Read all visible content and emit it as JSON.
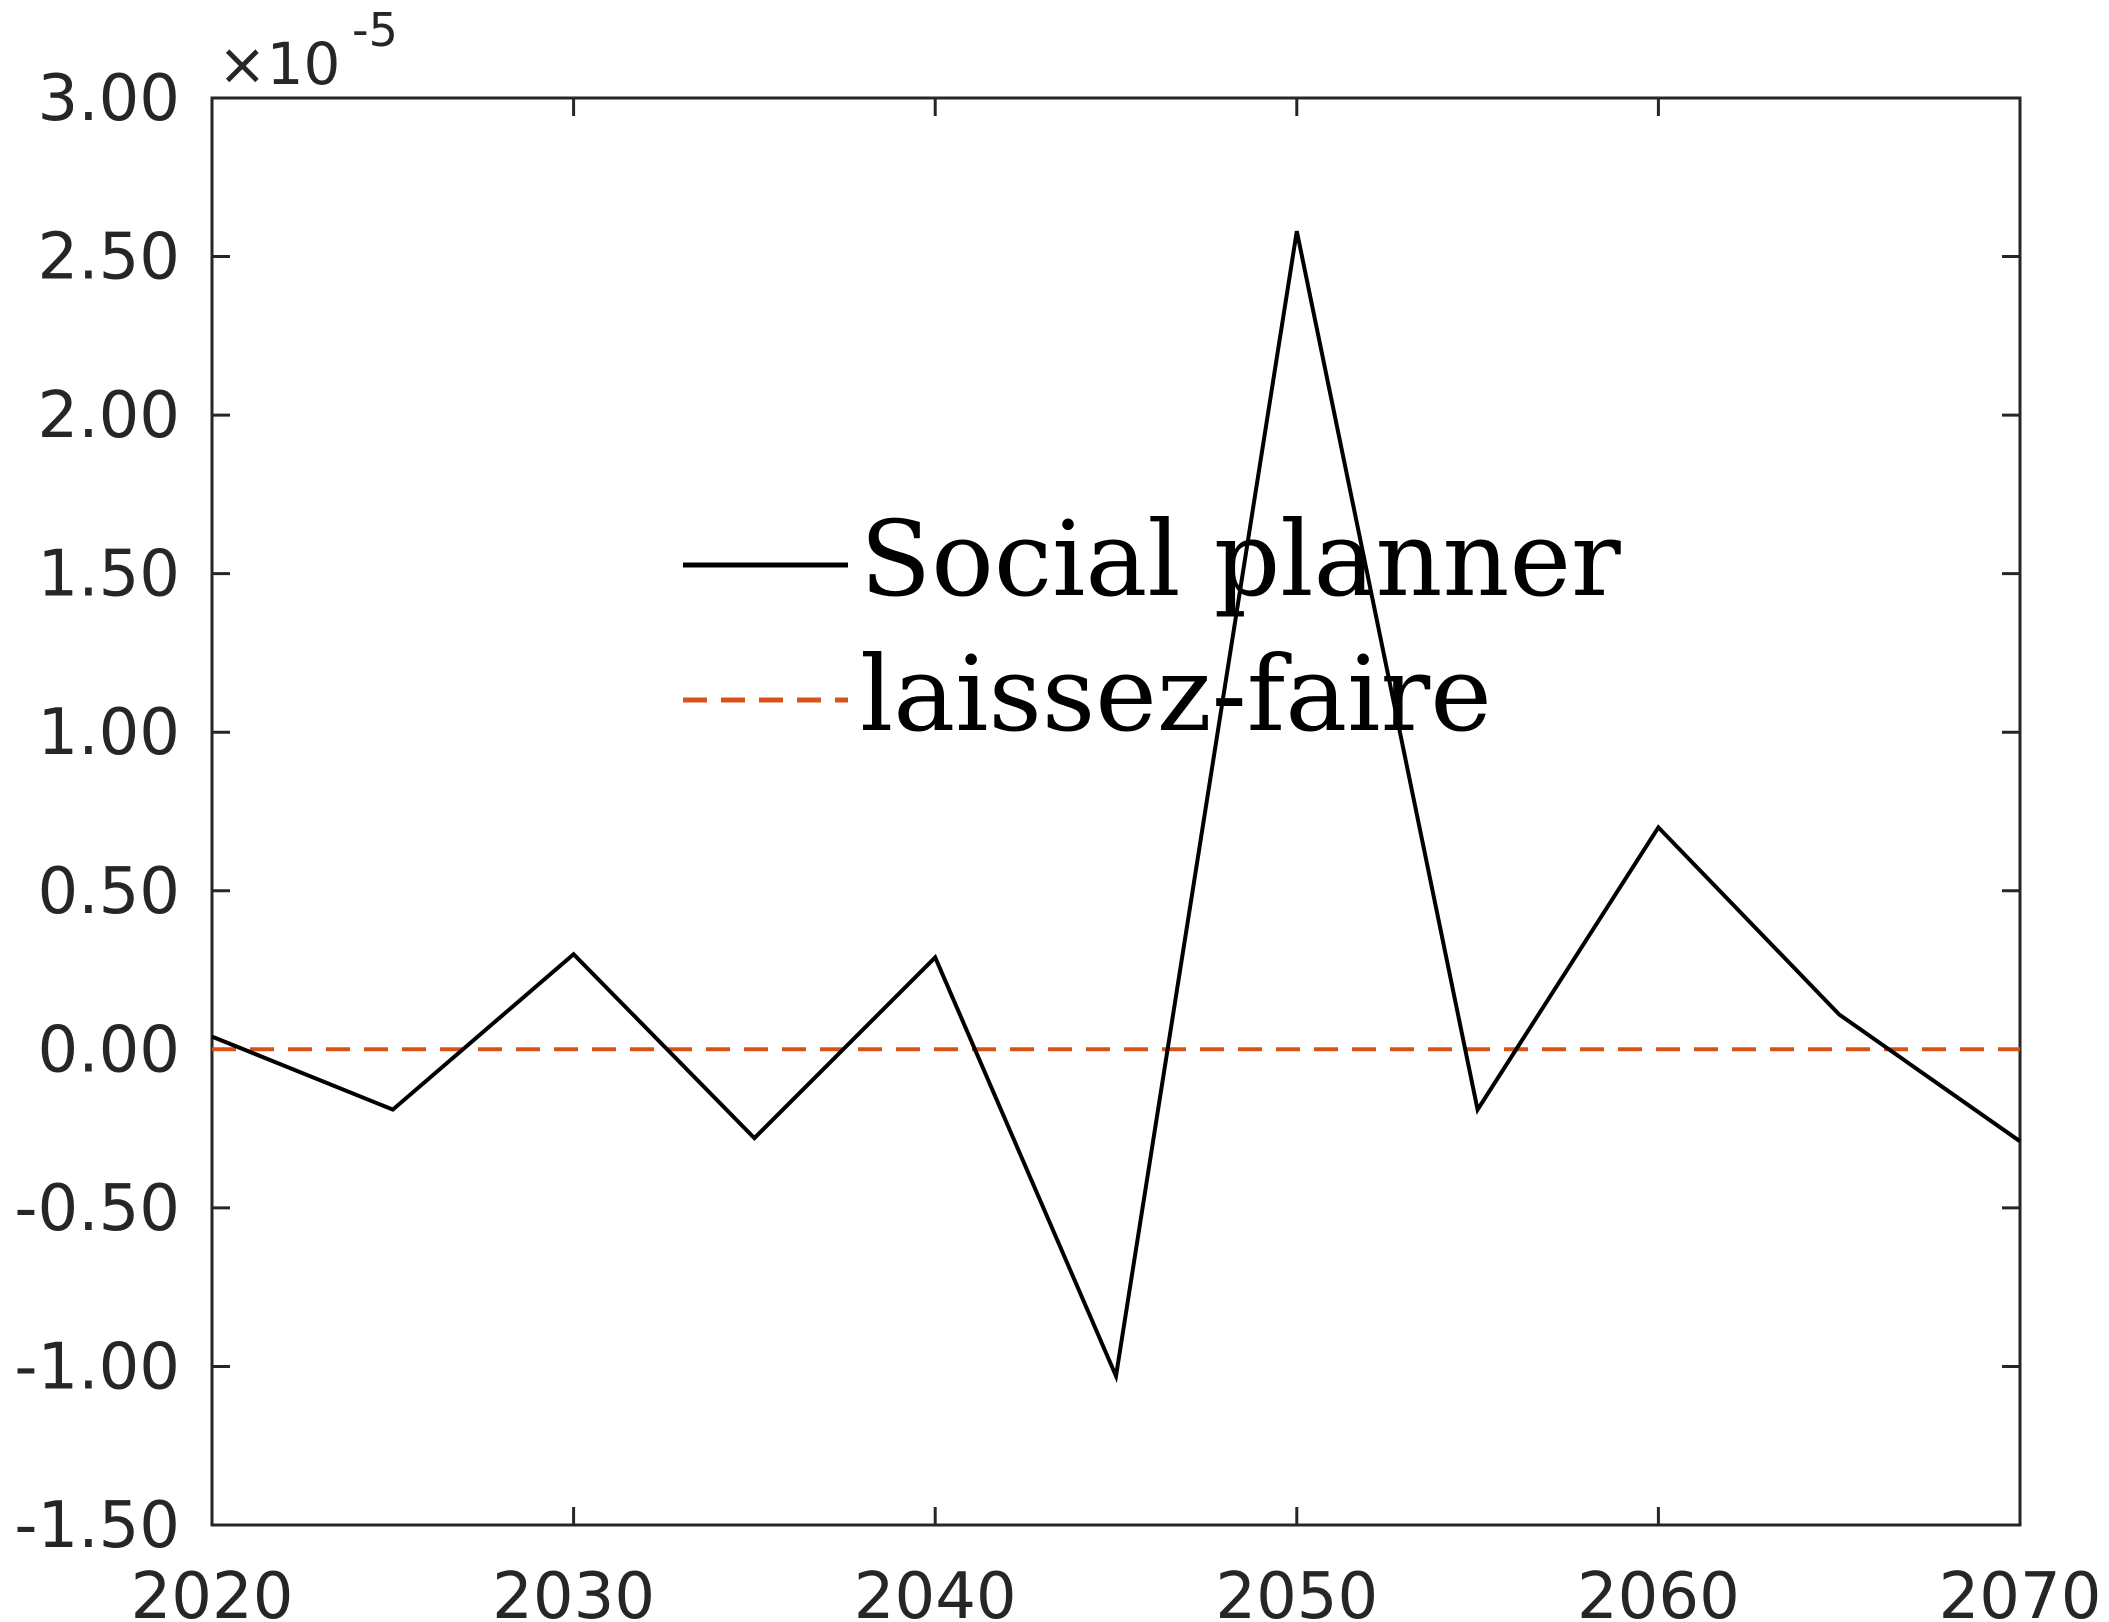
{
  "chart_data": {
    "type": "line",
    "title": "",
    "xlabel": "",
    "ylabel": "",
    "x": [
      2020,
      2025,
      2030,
      2035,
      2040,
      2045,
      2050,
      2055,
      2060,
      2065,
      2070
    ],
    "xlim": [
      2020,
      2070
    ],
    "ylim": [
      -1.5,
      3.0
    ],
    "x_ticks": [
      2020,
      2030,
      2040,
      2050,
      2060,
      2070
    ],
    "x_tick_labels": [
      "2020",
      "2030",
      "2040",
      "2050",
      "2060",
      "2070"
    ],
    "y_ticks": [
      -1.5,
      -1.0,
      -0.5,
      0.0,
      0.5,
      1.0,
      1.5,
      2.0,
      2.5,
      3.0
    ],
    "y_tick_labels": [
      "-1.50",
      "-1.00",
      "-0.50",
      "0.00",
      "0.50",
      "1.00",
      "1.50",
      "2.00",
      "2.50",
      "3.00"
    ],
    "y_exponent_base": "×10",
    "y_exponent_power": "-5",
    "grid": false,
    "legend_position": "upper-center",
    "series": [
      {
        "name": "Social planner",
        "values": [
          0.04,
          -0.19,
          0.3,
          -0.28,
          0.29,
          -1.03,
          2.58,
          -0.19,
          0.7,
          0.11,
          -0.29
        ],
        "color": "#000000",
        "line_style": "solid"
      },
      {
        "name": "laissez-faire",
        "values": [
          0,
          0,
          0,
          0,
          0,
          0,
          0,
          0,
          0,
          0,
          0
        ],
        "color": "#D95319",
        "line_style": "dashed"
      }
    ]
  }
}
